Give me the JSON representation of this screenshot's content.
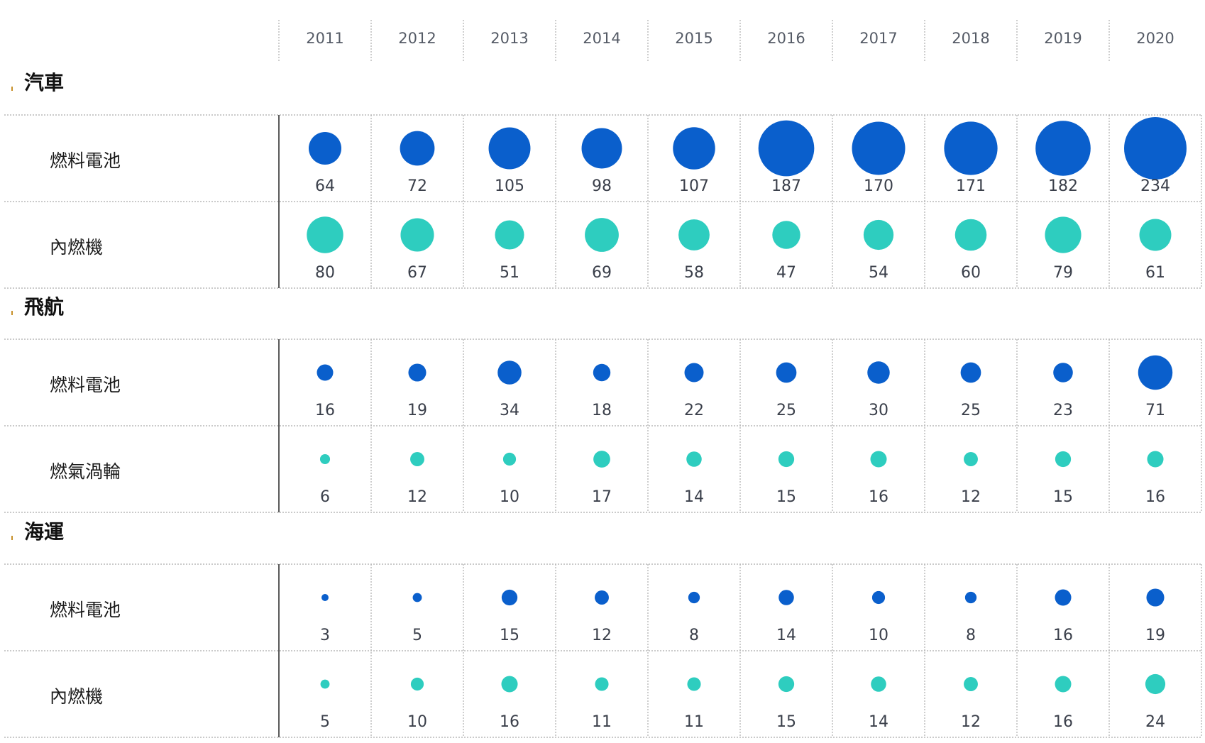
{
  "chart_data": {
    "type": "bubble-grid",
    "years": [
      "2011",
      "2012",
      "2013",
      "2014",
      "2015",
      "2016",
      "2017",
      "2018",
      "2019",
      "2020"
    ],
    "colors": {
      "燃料電池": "#0a5fcc",
      "other": "#2ecdbf"
    },
    "sectors": [
      {
        "name": "汽車",
        "rows": [
          {
            "label": "燃料電池",
            "kind": "fuel-cell",
            "values": [
              64,
              72,
              105,
              98,
              107,
              187,
              170,
              171,
              182,
              234
            ]
          },
          {
            "label": "內燃機",
            "kind": "other",
            "values": [
              80,
              67,
              51,
              69,
              58,
              47,
              54,
              60,
              79,
              61
            ]
          }
        ]
      },
      {
        "name": "飛航",
        "rows": [
          {
            "label": "燃料電池",
            "kind": "fuel-cell",
            "values": [
              16,
              19,
              34,
              18,
              22,
              25,
              30,
              25,
              23,
              71
            ]
          },
          {
            "label": "燃氣渦輪",
            "kind": "other",
            "values": [
              6,
              12,
              10,
              17,
              14,
              15,
              16,
              12,
              15,
              16
            ]
          }
        ]
      },
      {
        "name": "海運",
        "rows": [
          {
            "label": "燃料電池",
            "kind": "fuel-cell",
            "values": [
              3,
              5,
              15,
              12,
              8,
              14,
              10,
              8,
              16,
              19
            ]
          },
          {
            "label": "內燃機",
            "kind": "other",
            "values": [
              5,
              10,
              16,
              11,
              11,
              15,
              14,
              12,
              16,
              24
            ]
          }
        ]
      }
    ]
  }
}
